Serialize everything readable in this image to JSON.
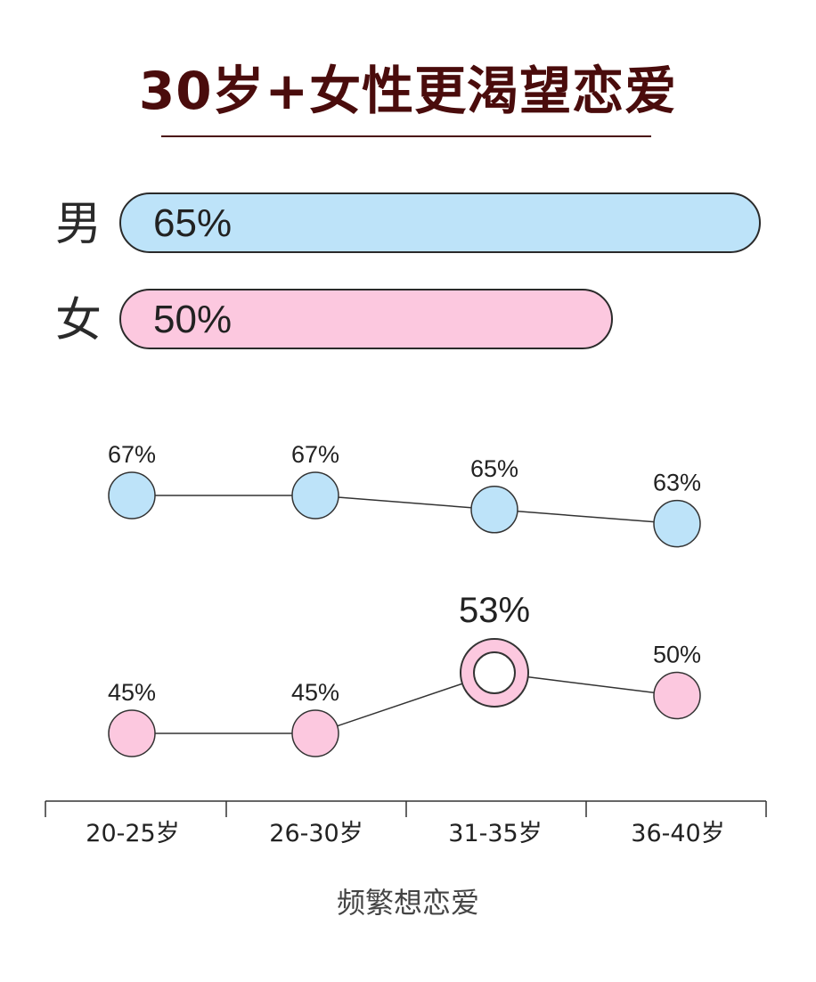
{
  "title": "30岁+女性更渴望恋爱",
  "bars": [
    {
      "label": "男",
      "value_text": "65%",
      "value": 65,
      "color": "#bde3f9"
    },
    {
      "label": "女",
      "value_text": "50%",
      "value": 50,
      "color": "#fcc8df"
    }
  ],
  "chart_data": [
    {
      "type": "bar",
      "orientation": "horizontal",
      "categories": [
        "男",
        "女"
      ],
      "values": [
        65,
        50
      ],
      "value_labels": [
        "65%",
        "50%"
      ],
      "colors": [
        "#bde3f9",
        "#fcc8df"
      ]
    },
    {
      "type": "line",
      "categories": [
        "20-25岁",
        "26-30岁",
        "31-35岁",
        "36-40岁"
      ],
      "series": [
        {
          "values": [
            67,
            67,
            65,
            63
          ],
          "labels": [
            "67%",
            "67%",
            "65%",
            "63%"
          ],
          "color": "#bde3f9"
        },
        {
          "values": [
            45,
            45,
            53,
            50
          ],
          "labels": [
            "45%",
            "45%",
            "53%",
            "50%"
          ],
          "color": "#fcc8df",
          "highlight_index": 2
        }
      ],
      "xlabel": "频繁想恋爱"
    }
  ]
}
